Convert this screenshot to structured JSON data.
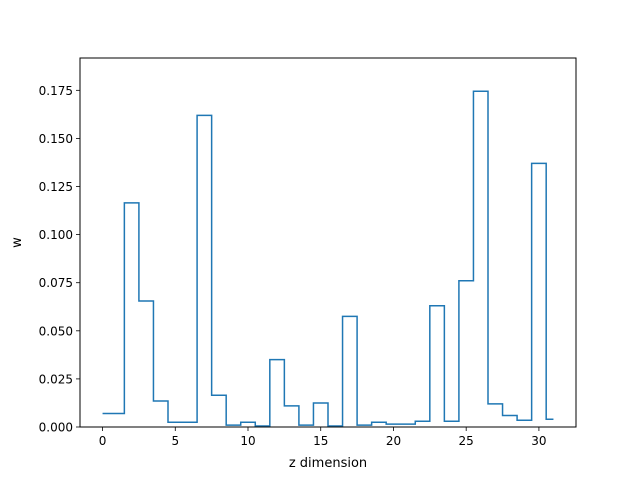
{
  "chart_data": {
    "type": "line",
    "drawstyle": "steps-mid",
    "xlabel": "z dimension",
    "ylabel": "w",
    "xlim": [
      -1.55,
      32.55
    ],
    "ylim": [
      0,
      0.1918
    ],
    "xticks": [
      0,
      5,
      10,
      15,
      20,
      25,
      30
    ],
    "xtick_labels": [
      "0",
      "5",
      "10",
      "15",
      "20",
      "25",
      "30"
    ],
    "yticks": [
      0,
      0.025,
      0.05,
      0.075,
      0.1,
      0.125,
      0.15,
      0.175
    ],
    "ytick_labels": [
      "0.000",
      "0.025",
      "0.050",
      "0.075",
      "0.100",
      "0.125",
      "0.150",
      "0.175"
    ],
    "grid": false,
    "series": [
      {
        "color": "#1f77b4",
        "x": [
          0,
          1,
          2,
          3,
          4,
          5,
          6,
          7,
          8,
          9,
          10,
          11,
          12,
          13,
          14,
          15,
          16,
          17,
          18,
          19,
          20,
          21,
          22,
          23,
          24,
          25,
          26,
          27,
          28,
          29,
          30,
          31
        ],
        "y": [
          0.007,
          0.007,
          0.1165,
          0.0655,
          0.0135,
          0.0025,
          0.0025,
          0.162,
          0.0165,
          0.001,
          0.0025,
          0.0005,
          0.035,
          0.011,
          0.001,
          0.0125,
          0.0005,
          0.0575,
          0.001,
          0.0025,
          0.0015,
          0.0015,
          0.003,
          0.063,
          0.003,
          0.076,
          0.1745,
          0.012,
          0.006,
          0.0035,
          0.137,
          0.004
        ]
      }
    ]
  }
}
